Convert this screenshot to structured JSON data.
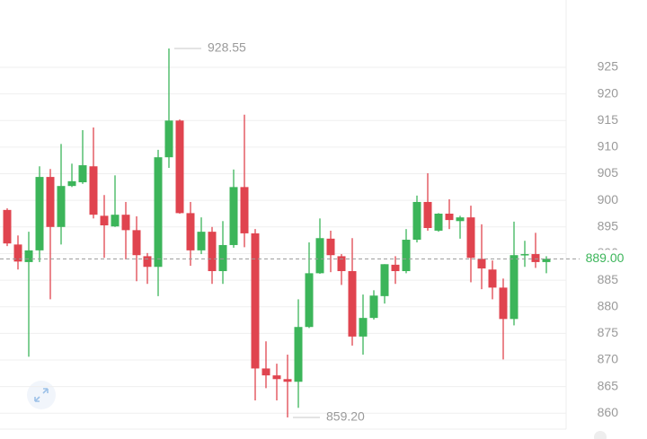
{
  "chart_data": {
    "type": "candlestick",
    "up_color": "#3cb55a",
    "down_color": "#e0444f",
    "open": [
      898.2,
      891.7,
      888.4,
      890.6,
      904.4,
      895.0,
      902.7,
      903.4,
      906.4,
      897.1,
      895.1,
      897.3,
      894.4,
      889.5,
      887.5,
      908.1,
      915.0,
      897.6,
      890.6,
      894.1,
      886.7,
      891.6,
      902.5,
      893.8,
      868.4,
      867.1,
      866.4,
      865.9,
      876.2,
      886.3,
      892.8,
      889.5,
      886.7,
      874.4,
      877.9,
      882.0,
      887.9,
      886.7,
      892.6,
      899.7,
      894.3,
      897.5,
      896.1,
      896.8,
      889.0,
      887.0,
      883.6,
      877.7,
      889.7,
      889.9,
      888.4
    ],
    "high": [
      898.5,
      893.4,
      894.1,
      906.4,
      905.9,
      910.6,
      906.9,
      913.2,
      913.7,
      901.0,
      904.7,
      899.7,
      897.0,
      890.1,
      909.5,
      928.55,
      915.2,
      899.7,
      896.8,
      895.0,
      896.1,
      905.8,
      916.1,
      894.6,
      873.5,
      869.3,
      871.0,
      881.4,
      892.1,
      896.6,
      894.3,
      889.9,
      892.9,
      882.3,
      883.1,
      888.0,
      889.5,
      894.6,
      900.9,
      905.1,
      897.6,
      900.2,
      897.1,
      899.0,
      895.5,
      888.7,
      885.3,
      896.0,
      892.4,
      893.9,
      889.5
    ],
    "low": [
      891.4,
      887.0,
      870.6,
      888.4,
      881.4,
      891.7,
      902.5,
      903.1,
      896.6,
      889.2,
      895.0,
      888.9,
      884.8,
      884.3,
      882.0,
      906.1,
      897.5,
      887.7,
      889.9,
      884.3,
      884.3,
      891.1,
      891.2,
      862.4,
      864.7,
      862.4,
      859.2,
      861.0,
      876.0,
      886.2,
      886.5,
      884.1,
      872.7,
      871.0,
      877.6,
      880.6,
      884.3,
      886.3,
      892.1,
      894.3,
      894.1,
      894.6,
      892.8,
      884.6,
      883.3,
      881.4,
      870.1,
      876.5,
      887.5,
      887.3,
      886.3
    ],
    "close": [
      891.9,
      888.5,
      890.6,
      904.4,
      895.0,
      902.7,
      903.6,
      906.6,
      897.3,
      895.3,
      897.3,
      894.4,
      889.7,
      887.5,
      908.1,
      915.0,
      897.6,
      890.6,
      894.1,
      886.7,
      891.6,
      902.5,
      893.8,
      868.4,
      867.1,
      866.4,
      865.9,
      876.2,
      886.3,
      892.9,
      889.7,
      886.7,
      874.4,
      877.9,
      882.1,
      888.0,
      886.7,
      892.6,
      899.7,
      894.8,
      897.5,
      896.3,
      896.8,
      889.2,
      887.2,
      883.6,
      877.7,
      889.7,
      889.9,
      888.4,
      889.0
    ],
    "ylim": [
      857,
      937.66
    ],
    "yticks": [
      860,
      865,
      870,
      875,
      880,
      885,
      890,
      895,
      900,
      905,
      910,
      915,
      920,
      925
    ],
    "grid": true,
    "annotations": [
      {
        "value": 928.55,
        "label": "928.55"
      },
      {
        "value": 859.2,
        "label": "859.20"
      }
    ],
    "last_price": {
      "value": 889.0,
      "label": "889.00"
    }
  }
}
